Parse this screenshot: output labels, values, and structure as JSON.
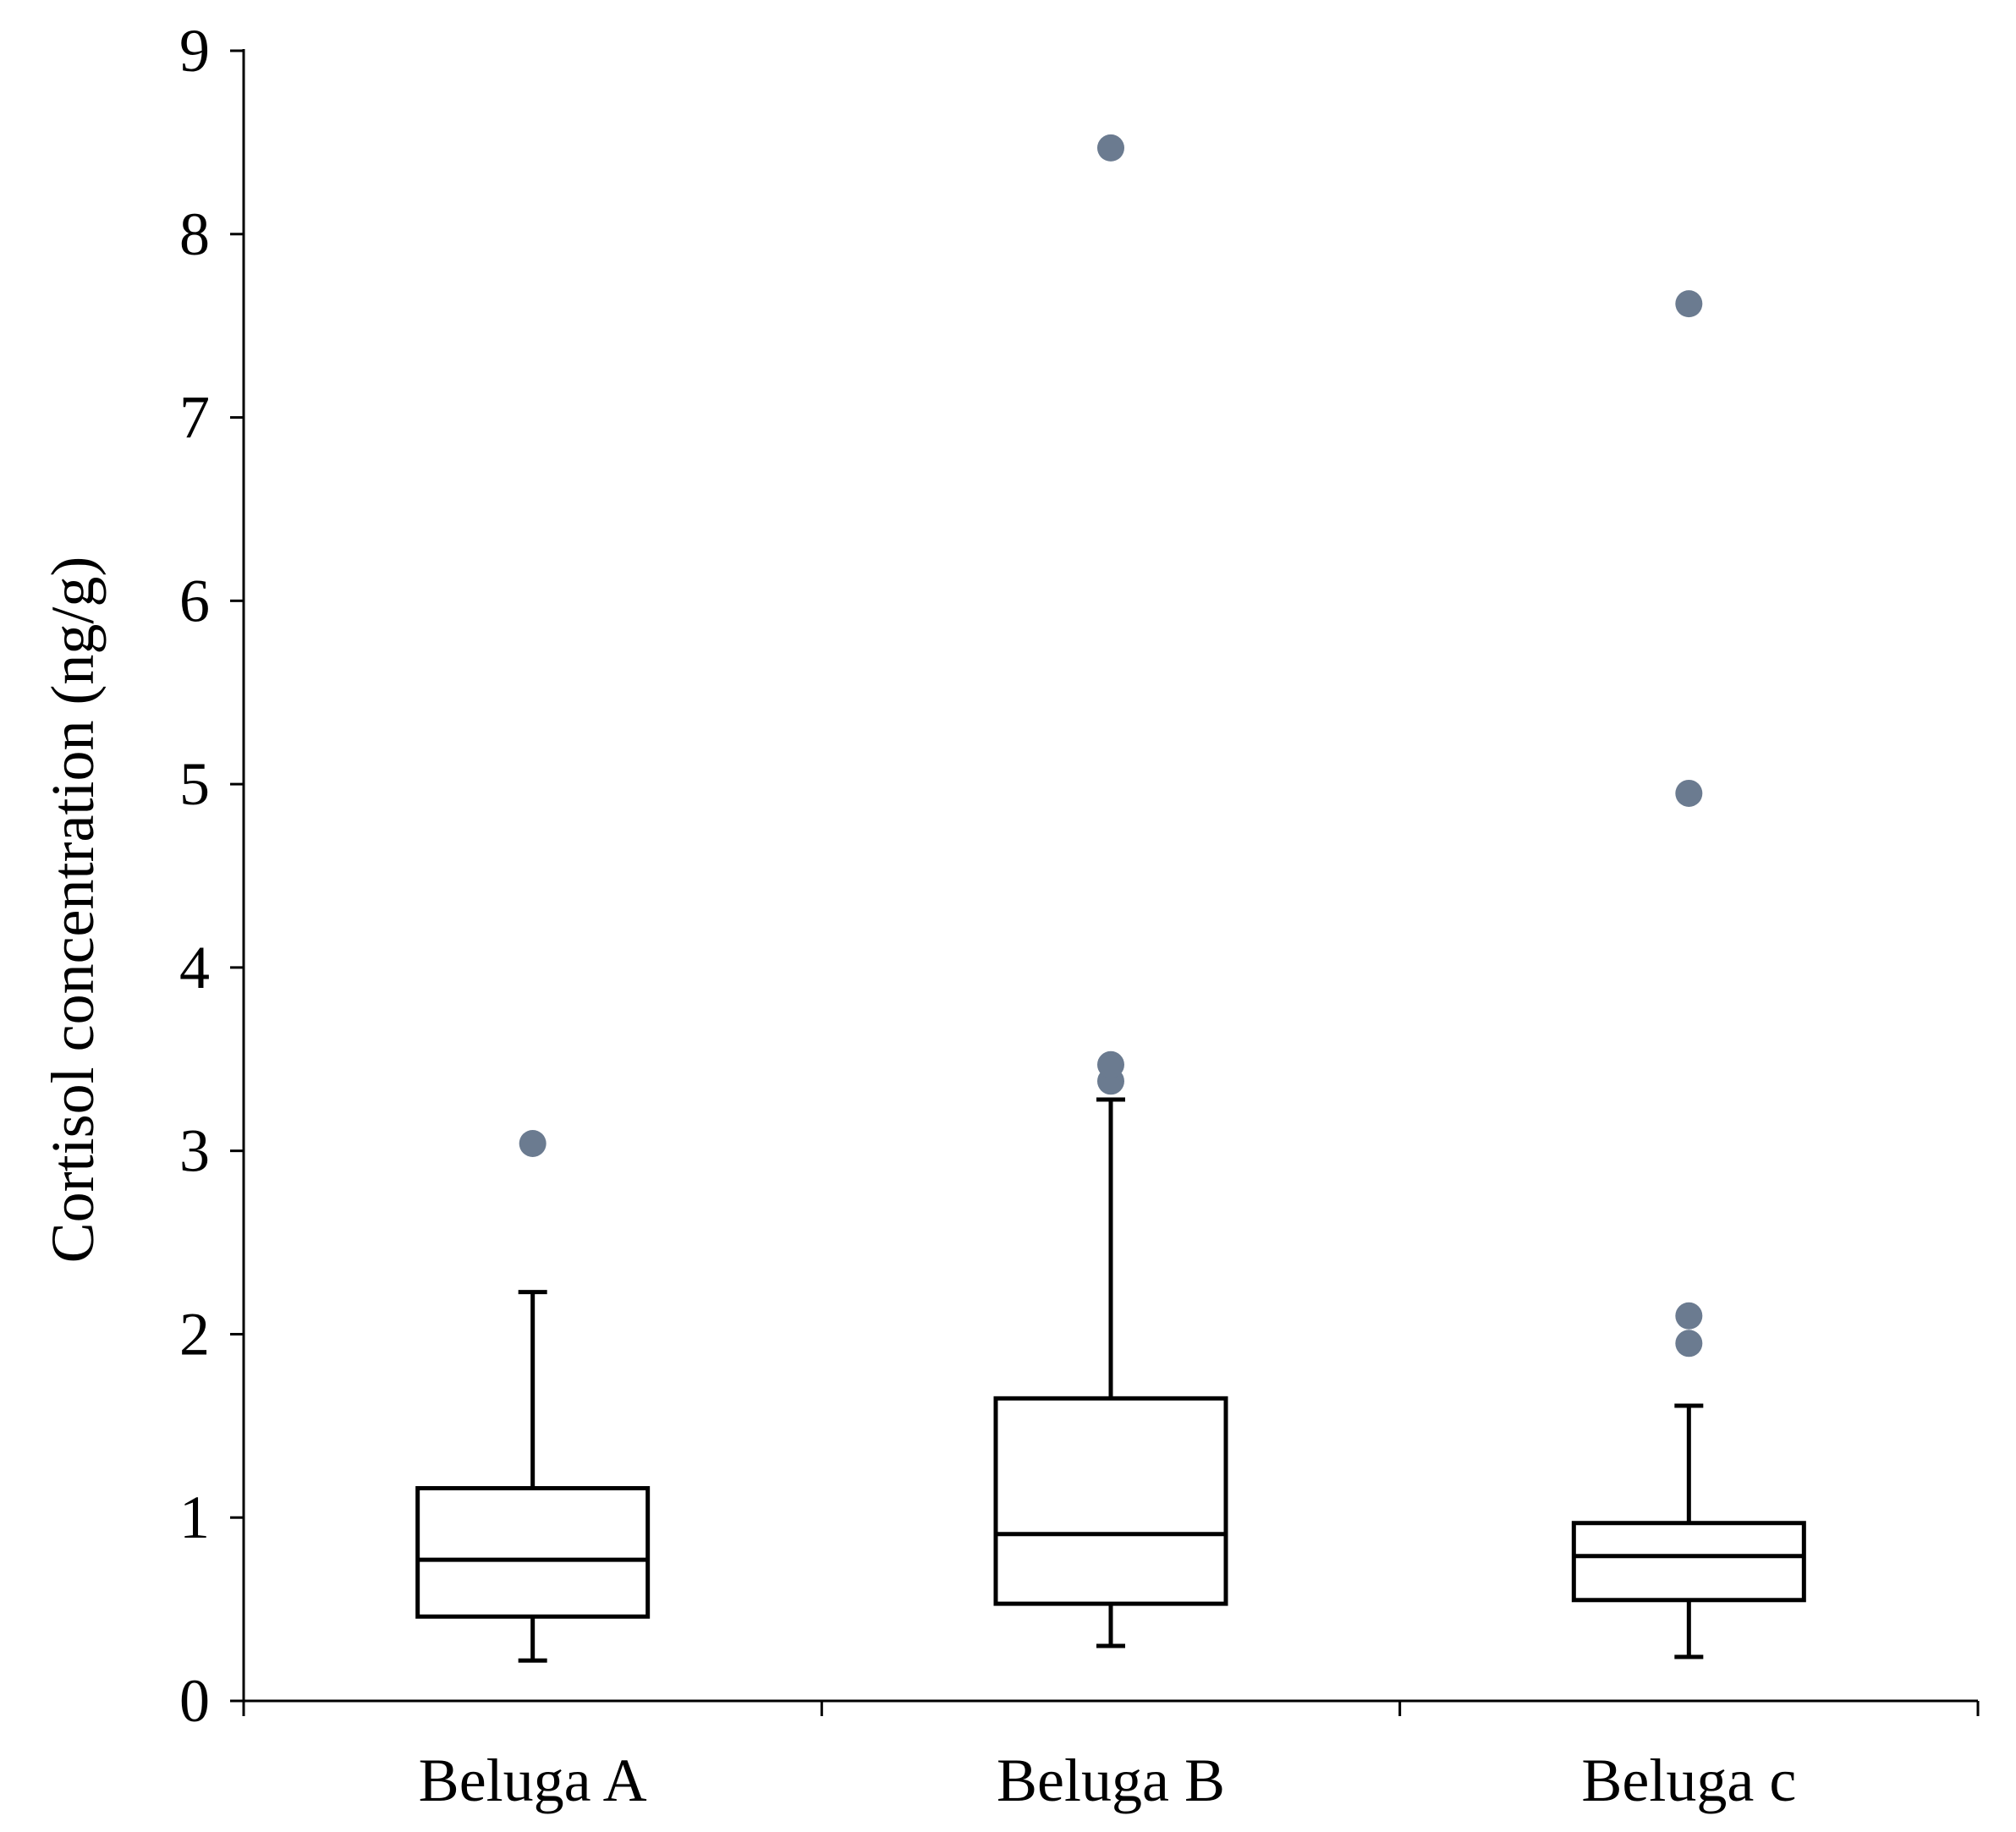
{
  "chart_data": {
    "type": "box",
    "title": "",
    "xlabel": "",
    "ylabel": "Cortisol concentration (ng/g)",
    "ylim": [
      0,
      9
    ],
    "yticks": [
      "0",
      "1",
      "2",
      "3",
      "4",
      "5",
      "6",
      "7",
      "8",
      "9"
    ],
    "categories": [
      "Beluga A",
      "Beluga B",
      "Beluga c"
    ],
    "boxes": [
      {
        "name": "Beluga A",
        "whisker_low": 0.22,
        "q1": 0.46,
        "median": 0.77,
        "q3": 1.16,
        "whisker_high": 2.23,
        "outliers": [
          3.04
        ]
      },
      {
        "name": "Beluga B",
        "whisker_low": 0.3,
        "q1": 0.53,
        "median": 0.91,
        "q3": 1.65,
        "whisker_high": 3.28,
        "outliers": [
          3.38,
          3.47,
          8.47
        ]
      },
      {
        "name": "Beluga c",
        "whisker_low": 0.24,
        "q1": 0.55,
        "median": 0.79,
        "q3": 0.97,
        "whisker_high": 1.61,
        "outliers": [
          1.95,
          2.1,
          4.95,
          7.62
        ]
      }
    ],
    "colors": {
      "box": "#000000",
      "outlier": "#6b7b90",
      "axis": "#000000"
    },
    "grid": false,
    "legend": "none"
  }
}
